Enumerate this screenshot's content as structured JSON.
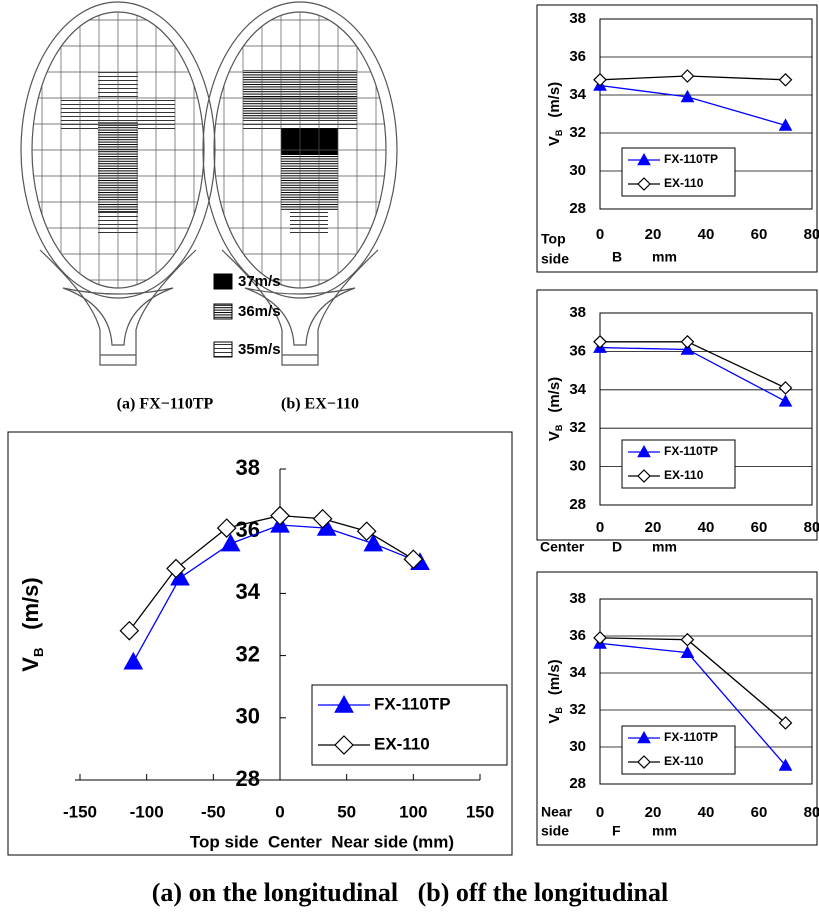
{
  "figure": {
    "racket_captions": [
      "(a) FX−110TP",
      "(b) EX−110"
    ],
    "racket_legend": [
      "37m/s",
      "36m/s",
      "35m/s"
    ],
    "caption": "(a) on the longitudinal   (b) off the longitudinal"
  },
  "chart_data": [
    {
      "type": "line",
      "ylabel_symbol": "V",
      "ylabel_subscript": "B",
      "ylabel_unit": "(m/s)",
      "xlabel": "Top side  Center  Near side (mm)",
      "xlim": [
        -150,
        150
      ],
      "ylim": [
        28,
        38
      ],
      "xticks": [
        -150,
        -100,
        -50,
        0,
        50,
        100,
        150
      ],
      "yticks": [
        28,
        30,
        32,
        34,
        36,
        38
      ],
      "grid": false,
      "legend": "lower right",
      "series": [
        {
          "name": "FX-110TP",
          "color": "#0000ff",
          "marker": "triangle",
          "x": [
            -110,
            -75,
            -37,
            0,
            35,
            70,
            105
          ],
          "values": [
            31.8,
            34.5,
            35.6,
            36.2,
            36.1,
            35.6,
            35.0
          ]
        },
        {
          "name": "EX-110",
          "color": "#000000",
          "marker": "diamond",
          "x": [
            -113,
            -78,
            -40,
            0,
            32,
            65,
            100
          ],
          "values": [
            32.8,
            34.8,
            36.1,
            36.5,
            36.4,
            36.0,
            35.1
          ]
        }
      ]
    },
    {
      "type": "line",
      "ylabel_symbol": "V",
      "ylabel_subscript": "B",
      "ylabel_unit": "(m/s)",
      "side_label": [
        "Top",
        "side"
      ],
      "point_label": "B",
      "xlabel": "mm",
      "xlim": [
        0,
        80
      ],
      "ylim": [
        28,
        38
      ],
      "xticks": [
        0,
        20,
        40,
        60,
        80
      ],
      "yticks": [
        28,
        30,
        32,
        34,
        36,
        38
      ],
      "grid": true,
      "legend": "lower left",
      "series": [
        {
          "name": "FX-110TP",
          "color": "#0000ff",
          "marker": "triangle",
          "x": [
            0,
            33,
            70
          ],
          "values": [
            34.5,
            33.9,
            32.4
          ]
        },
        {
          "name": "EX-110",
          "color": "#000000",
          "marker": "diamond",
          "x": [
            0,
            33,
            70
          ],
          "values": [
            34.8,
            35.0,
            34.8
          ]
        }
      ]
    },
    {
      "type": "line",
      "ylabel_symbol": "V",
      "ylabel_subscript": "B",
      "ylabel_unit": "(m/s)",
      "side_label": [
        "Center"
      ],
      "point_label": "D",
      "xlabel": "mm",
      "xlim": [
        0,
        80
      ],
      "ylim": [
        28,
        38
      ],
      "xticks": [
        0,
        20,
        40,
        60,
        80
      ],
      "yticks": [
        28,
        30,
        32,
        34,
        36,
        38
      ],
      "grid": true,
      "legend": "lower left",
      "series": [
        {
          "name": "FX-110TP",
          "color": "#0000ff",
          "marker": "triangle",
          "x": [
            0,
            33,
            70
          ],
          "values": [
            36.2,
            36.1,
            33.4
          ]
        },
        {
          "name": "EX-110",
          "color": "#000000",
          "marker": "diamond",
          "x": [
            0,
            33,
            70
          ],
          "values": [
            36.5,
            36.5,
            34.1
          ]
        }
      ]
    },
    {
      "type": "line",
      "ylabel_symbol": "V",
      "ylabel_subscript": "B",
      "ylabel_unit": "(m/s)",
      "side_label": [
        "Near",
        "side"
      ],
      "point_label": "F",
      "xlabel": "mm",
      "xlim": [
        0,
        80
      ],
      "ylim": [
        28,
        38
      ],
      "xticks": [
        0,
        20,
        40,
        60,
        80
      ],
      "yticks": [
        28,
        30,
        32,
        34,
        36,
        38
      ],
      "grid": true,
      "legend": "lower left",
      "series": [
        {
          "name": "FX-110TP",
          "color": "#0000ff",
          "marker": "triangle",
          "x": [
            0,
            33,
            70
          ],
          "values": [
            35.6,
            35.1,
            29.0
          ]
        },
        {
          "name": "EX-110",
          "color": "#000000",
          "marker": "diamond",
          "x": [
            0,
            33,
            70
          ],
          "values": [
            35.9,
            35.8,
            31.3
          ]
        }
      ]
    }
  ]
}
